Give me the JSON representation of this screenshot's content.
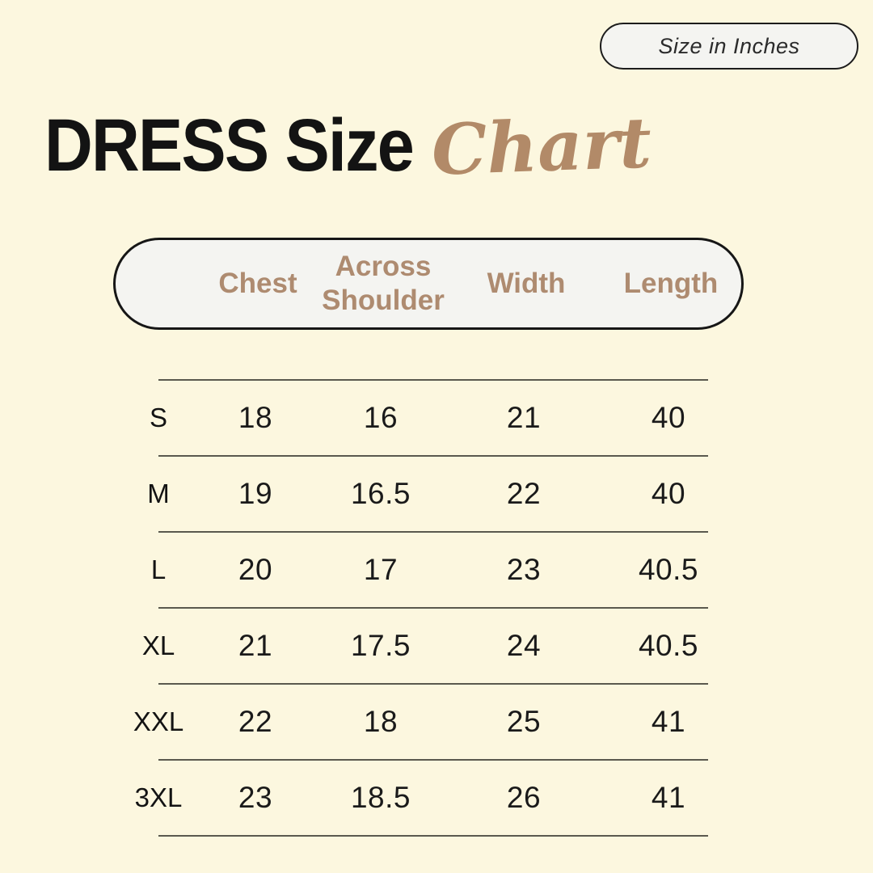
{
  "badge": {
    "label": "Size in Inches"
  },
  "title": {
    "main": "DRESS Size",
    "script": "Chart"
  },
  "table": {
    "headers": {
      "chest": "Chest",
      "across_shoulder": "Across Shoulder",
      "width": "Width",
      "length": "Length"
    },
    "rows": [
      {
        "size": "S",
        "chest": "18",
        "across_shoulder": "16",
        "width": "21",
        "length": "40"
      },
      {
        "size": "M",
        "chest": "19",
        "across_shoulder": "16.5",
        "width": "22",
        "length": "40"
      },
      {
        "size": "L",
        "chest": "20",
        "across_shoulder": "17",
        "width": "23",
        "length": "40.5"
      },
      {
        "size": "XL",
        "chest": "21",
        "across_shoulder": "17.5",
        "width": "24",
        "length": "40.5"
      },
      {
        "size": "XXL",
        "chest": "22",
        "across_shoulder": "18",
        "width": "25",
        "length": "41"
      },
      {
        "size": "3XL",
        "chest": "23",
        "across_shoulder": "18.5",
        "width": "26",
        "length": "41"
      }
    ]
  },
  "chart_data": {
    "type": "table",
    "title": "DRESS Size Chart",
    "unit_note": "Size in Inches",
    "columns": [
      "Size",
      "Chest",
      "Across Shoulder",
      "Width",
      "Length"
    ],
    "rows": [
      [
        "S",
        18,
        16,
        21,
        40
      ],
      [
        "M",
        19,
        16.5,
        22,
        40
      ],
      [
        "L",
        20,
        17,
        23,
        40.5
      ],
      [
        "XL",
        21,
        17.5,
        24,
        40.5
      ],
      [
        "XXL",
        22,
        18,
        25,
        41
      ],
      [
        "3XL",
        23,
        18.5,
        26,
        41
      ]
    ]
  },
  "colors": {
    "background": "#FCF7DF",
    "text_black": "#131313",
    "accent_brown": "#B28A68",
    "header_brown": "#AE8B70",
    "panel_fill": "#F4F4F1",
    "rule_line": "#5A594E"
  }
}
